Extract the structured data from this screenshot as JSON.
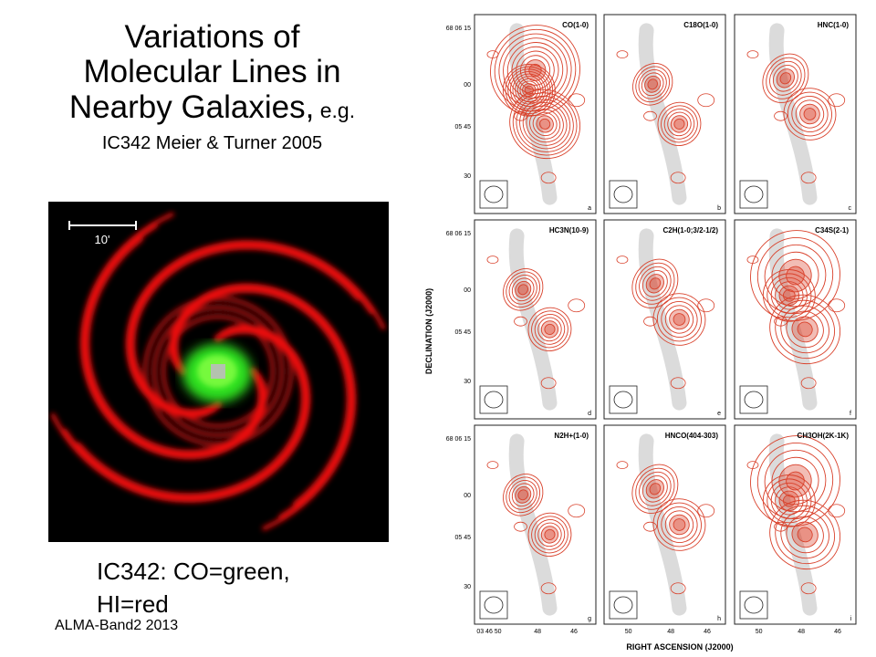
{
  "title": {
    "line1": "Variations of",
    "line2": "Molecular Lines in",
    "line3_main": "Nearby Galaxies,",
    "line3_small": " e.g.",
    "line4": "IC342 Meier & Turner 2005"
  },
  "galaxy": {
    "scale_label": "10'",
    "colors": {
      "co": "#33ee22",
      "hi": "#ee1010"
    }
  },
  "caption": {
    "line1": "IC342: CO=green,",
    "line2": "HI=red"
  },
  "footer": "ALMA-Band2 2013",
  "figure": {
    "y_axis_title": "DECLINATION (J2000)",
    "x_axis_title": "RIGHT ASCENSION (J2000)",
    "dec_ticks": [
      "68 06 15",
      "00",
      "05 45",
      "30"
    ],
    "ra_ticks_first": [
      "03 46 50",
      "48",
      "46"
    ],
    "ra_ticks": [
      "50",
      "48",
      "46"
    ],
    "panels": [
      {
        "label": "CO(1-0)",
        "letter": "a"
      },
      {
        "label": "C18O(1-0)",
        "letter": "b"
      },
      {
        "label": "HNC(1-0)",
        "letter": "c"
      },
      {
        "label": "HC3N(10-9)",
        "letter": "d"
      },
      {
        "label": "C2H(1-0;3/2-1/2)",
        "letter": "e"
      },
      {
        "label": "C34S(2-1)",
        "letter": "f"
      },
      {
        "label": "N2H+(1-0)",
        "letter": "g"
      },
      {
        "label": "HNCO(404-303)",
        "letter": "h"
      },
      {
        "label": "CH3OH(2K-1K)",
        "letter": "i"
      }
    ],
    "contour_color": "#d9412b"
  }
}
